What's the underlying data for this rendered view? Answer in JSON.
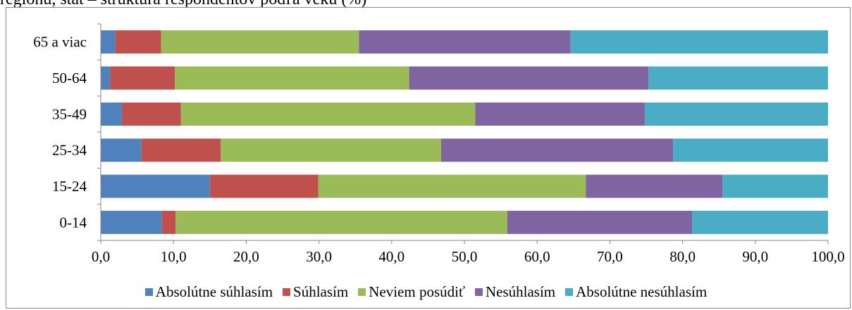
{
  "caption": "regiónu, štát – štruktúra respondentov podľa veku (%)",
  "chart_data": {
    "type": "bar",
    "orientation": "horizontal",
    "stacked": true,
    "title": "",
    "xlabel": "",
    "ylabel": "",
    "xlim": [
      0,
      100
    ],
    "x_ticks": [
      "0,0",
      "10,0",
      "20,0",
      "30,0",
      "40,0",
      "50,0",
      "60,0",
      "70,0",
      "80,0",
      "90,0",
      "100,0"
    ],
    "categories": [
      "0-14",
      "15-24",
      "25-34",
      "35-49",
      "50-64",
      "65 a viac"
    ],
    "series": [
      {
        "name": "Absolútne súhlasím",
        "color": "#4f81bd",
        "values": [
          8.4,
          15.0,
          5.6,
          2.9,
          1.3,
          2.0
        ]
      },
      {
        "name": "Súhlasím",
        "color": "#c0504d",
        "values": [
          1.9,
          14.9,
          10.9,
          8.1,
          8.9,
          6.3
        ]
      },
      {
        "name": "Neviem posúdiť",
        "color": "#9bbb59",
        "values": [
          45.6,
          36.8,
          30.3,
          40.5,
          32.2,
          27.2
        ]
      },
      {
        "name": "Nesúhlasím",
        "color": "#8064a2",
        "values": [
          25.4,
          18.8,
          31.9,
          23.3,
          32.9,
          29.1
        ]
      },
      {
        "name": "Absolútne nesúhlasím",
        "color": "#4bacc6",
        "values": [
          18.7,
          14.5,
          21.3,
          25.2,
          24.7,
          35.4
        ]
      }
    ],
    "legend_position": "bottom",
    "grid": false
  }
}
